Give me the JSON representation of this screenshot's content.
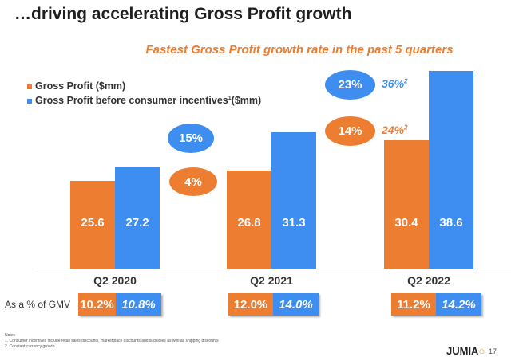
{
  "title": "…driving accelerating Gross Profit growth",
  "subtitle": "Fastest Gross Profit growth rate in the past 5 quarters",
  "colors": {
    "orange": "#ED7D31",
    "blue": "#3D8EF0"
  },
  "chart_data": {
    "type": "bar",
    "categories": [
      "Q2 2020",
      "Q2 2021",
      "Q2 2022"
    ],
    "series": [
      {
        "name": "Gross Profit ($mm)",
        "values": [
          25.6,
          26.8,
          30.4
        ],
        "color": "#ED7D31"
      },
      {
        "name": "Gross Profit before consumer incentives",
        "name_sup": "1",
        "name_suffix": "($mm)",
        "values": [
          27.2,
          31.3,
          38.6
        ],
        "color": "#3D8EF0"
      }
    ],
    "ylim": [
      15.2,
      40
    ],
    "legend": "top-left",
    "grid": false,
    "annotations": {
      "q2_2021_growth": {
        "blue": "15%",
        "orange": "4%"
      },
      "q2_2022_growth": {
        "blue": "23%",
        "orange": "14%",
        "blue_cc": "36%",
        "orange_cc": "24%",
        "cc_sup": "2"
      }
    }
  },
  "gmv": {
    "label": "As a % of GMV",
    "values": [
      [
        "10.2%",
        "10.8%"
      ],
      [
        "12.0%",
        "14.0%"
      ],
      [
        "11.2%",
        "14.2%"
      ]
    ]
  },
  "notes": {
    "heading": "Notes",
    "items": [
      "1.  Consumer incentives include retail sales discounts, marketplace discounts and subsidies as well as shipping discounts",
      "2.  Constant currency growth"
    ]
  },
  "logo": "JUMIA",
  "page_number": "17"
}
